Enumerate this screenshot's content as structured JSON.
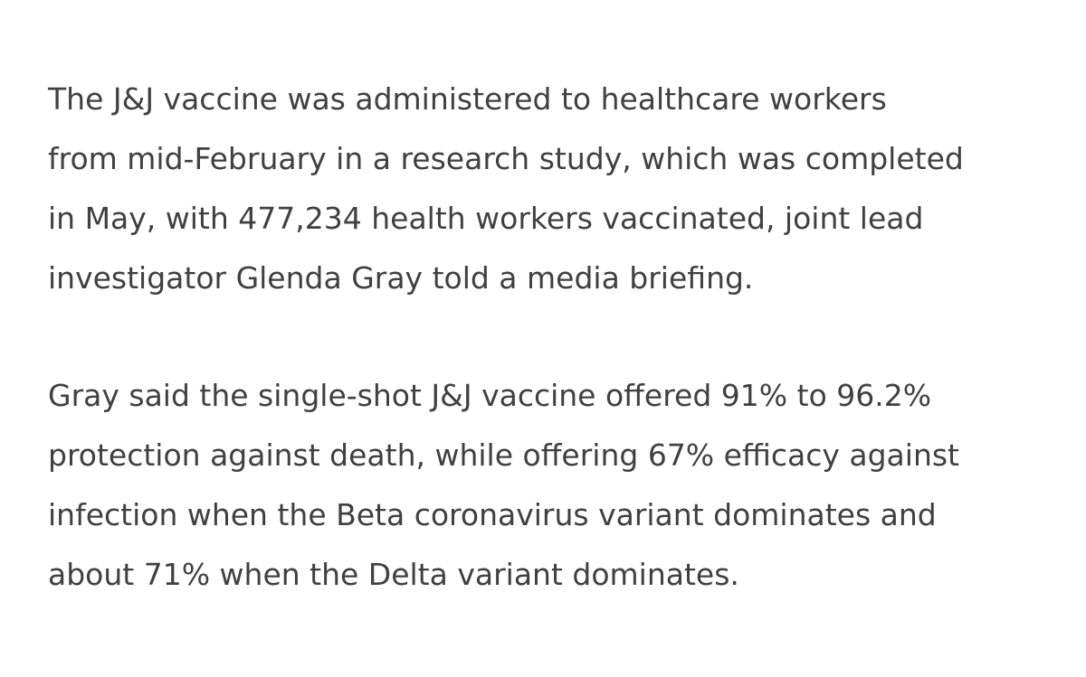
{
  "article": {
    "paragraphs": [
      {
        "lines": [
          "The J&J vaccine was administered to healthcare workers",
          "from mid-February in a research study, which was completed",
          "in May, with 477,234 health workers vaccinated, joint lead",
          "investigator Glenda Gray told a media briefing."
        ]
      },
      {
        "lines": [
          "Gray said the single-shot J&J vaccine offered 91% to 96.2%",
          "protection against death, while offering 67% efficacy against",
          "infection when the Beta coronavirus variant dominates and",
          "about 71% when the Delta variant dominates."
        ]
      }
    ]
  },
  "colors": {
    "text": "#404040",
    "background": "#ffffff"
  }
}
